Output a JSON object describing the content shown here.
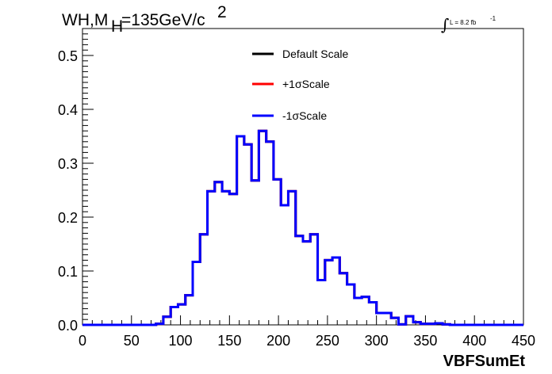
{
  "chart_data": {
    "type": "line",
    "style": "step-histogram",
    "title_main": "WH,M",
    "title_sub": "H",
    "title_rest": "=135GeV/c",
    "title_sup": "2",
    "lumi_text": "L = 8.2 fb",
    "lumi_sup": "-1",
    "xlabel": "VBFSumEt",
    "ylabel": "",
    "xlim": [
      0,
      450
    ],
    "ylim": [
      0,
      0.55
    ],
    "x_ticks": [
      0,
      50,
      100,
      150,
      200,
      250,
      300,
      350,
      400,
      450
    ],
    "x_tick_labels": [
      "0",
      "50",
      "100",
      "150",
      "200",
      "250",
      "300",
      "350",
      "400",
      "450"
    ],
    "y_ticks": [
      0,
      0.1,
      0.2,
      0.3,
      0.4,
      0.5
    ],
    "y_tick_labels": [
      "0.0",
      "0.1",
      "0.2",
      "0.3",
      "0.4",
      "0.5"
    ],
    "bin_width": 7.5,
    "bin_edges_start": 0,
    "legend": {
      "placement": "top-center",
      "entries": [
        {
          "label": "Default Scale",
          "color": "#000000"
        },
        {
          "label": "+1σScale",
          "color": "#ff0000"
        },
        {
          "label": "-1σScale",
          "color": "#0000ff"
        }
      ]
    },
    "series": [
      {
        "name": "Default Scale",
        "color": "#000000",
        "values": [
          0,
          0,
          0,
          0,
          0,
          0,
          0,
          0,
          0,
          0,
          0.002,
          0.015,
          0.033,
          0.038,
          0.055,
          0.117,
          0.168,
          0.248,
          0.265,
          0.248,
          0.243,
          0.35,
          0.335,
          0.268,
          0.36,
          0.34,
          0.27,
          0.222,
          0.248,
          0.165,
          0.155,
          0.168,
          0.083,
          0.12,
          0.125,
          0.096,
          0.075,
          0.05,
          0.052,
          0.042,
          0.022,
          0.022,
          0.013,
          0.001,
          0.016,
          0.005,
          0.002,
          0.002,
          0.003,
          0.001,
          0,
          0,
          0,
          0,
          0,
          0,
          0,
          0,
          0,
          0
        ]
      },
      {
        "name": "+1σScale",
        "color": "#ff0000",
        "values": [
          0,
          0,
          0,
          0,
          0,
          0,
          0,
          0,
          0,
          0,
          0.002,
          0.015,
          0.033,
          0.038,
          0.055,
          0.117,
          0.168,
          0.248,
          0.265,
          0.248,
          0.243,
          0.35,
          0.335,
          0.268,
          0.36,
          0.34,
          0.27,
          0.222,
          0.248,
          0.165,
          0.155,
          0.168,
          0.083,
          0.12,
          0.125,
          0.096,
          0.075,
          0.05,
          0.052,
          0.042,
          0.022,
          0.022,
          0.013,
          0.001,
          0.016,
          0.005,
          0.002,
          0.002,
          0.003,
          0.001,
          0,
          0,
          0,
          0,
          0,
          0,
          0,
          0,
          0,
          0
        ]
      },
      {
        "name": "-1σScale",
        "color": "#0000ff",
        "values": [
          0,
          0,
          0,
          0,
          0,
          0,
          0,
          0,
          0,
          0,
          0.002,
          0.015,
          0.033,
          0.038,
          0.055,
          0.117,
          0.168,
          0.248,
          0.265,
          0.248,
          0.243,
          0.35,
          0.335,
          0.268,
          0.36,
          0.34,
          0.27,
          0.222,
          0.248,
          0.165,
          0.155,
          0.168,
          0.083,
          0.12,
          0.125,
          0.096,
          0.075,
          0.05,
          0.052,
          0.042,
          0.022,
          0.022,
          0.013,
          0.001,
          0.016,
          0.005,
          0.002,
          0.002,
          0.003,
          0.001,
          0,
          0,
          0,
          0,
          0,
          0,
          0,
          0,
          0,
          0
        ]
      }
    ]
  }
}
